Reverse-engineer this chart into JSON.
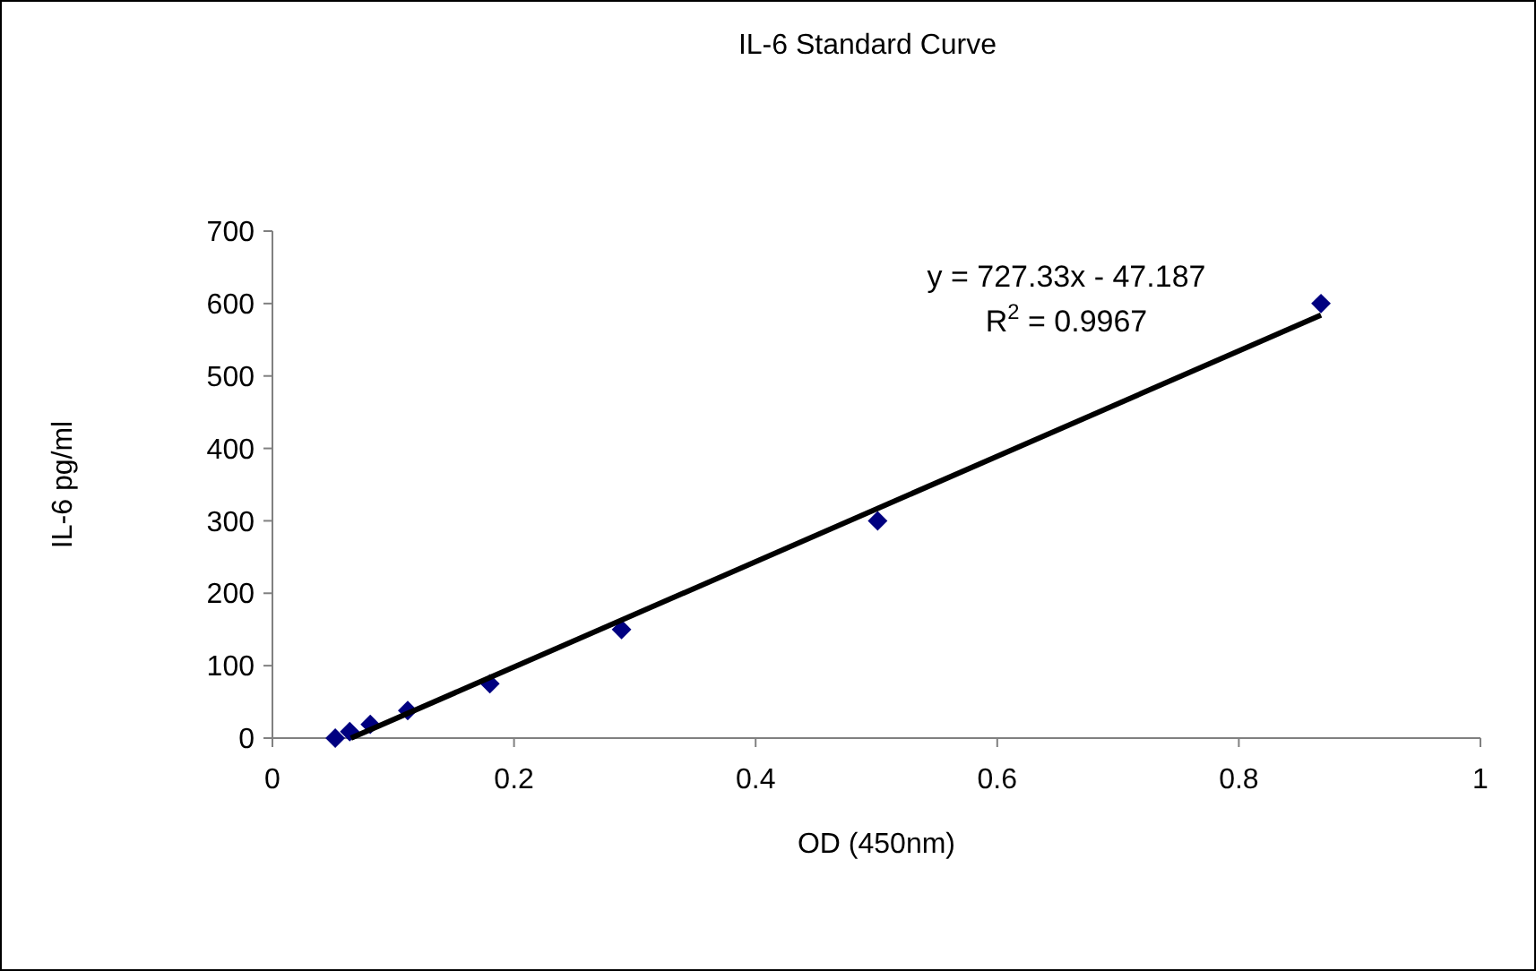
{
  "chart_data": {
    "type": "scatter",
    "title": "IL-6 Standard Curve",
    "xlabel": "OD (450nm)",
    "ylabel": "IL-6 pg/ml",
    "xlim": [
      0,
      1
    ],
    "xticks": [
      0,
      0.2,
      0.4,
      0.6,
      0.8,
      1
    ],
    "ylim": [
      0,
      700
    ],
    "yticks": [
      0,
      100,
      200,
      300,
      400,
      500,
      600,
      700
    ],
    "grid": false,
    "series": [
      {
        "color": "#000080",
        "marker": "diamond",
        "x": [
          0.052,
          0.064,
          0.081,
          0.112,
          0.18,
          0.289,
          0.501,
          0.868
        ],
        "values": [
          0,
          9,
          19,
          38,
          75,
          150,
          300,
          600
        ]
      },
      {
        "type": "line",
        "color": "#000000",
        "x": [
          0.065,
          0.868
        ],
        "values": [
          0,
          584
        ]
      }
    ],
    "annotations": [
      "y = 727.33x - 47.187",
      "R$^{2}$ = 0.9967"
    ]
  }
}
